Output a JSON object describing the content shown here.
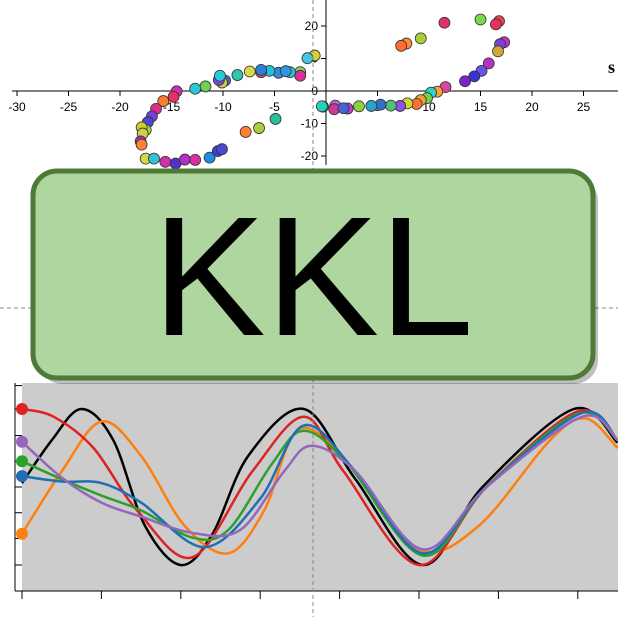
{
  "title": "KKL",
  "colors": {
    "banner_fill": "#aed69e",
    "banner_border": "#4d7a37",
    "panel_bg": "#cccccc",
    "crosshair": "#888888",
    "axis": "#000000"
  },
  "chart_data": [
    {
      "type": "scatter",
      "title": "",
      "cut_label": "s",
      "xlim": [
        -30,
        28
      ],
      "ylim": [
        -24,
        27
      ],
      "x_ticks": [
        -30,
        -25,
        -20,
        -15,
        -10,
        -5,
        0,
        5,
        10,
        15,
        20,
        25
      ],
      "x_tick_labels": [
        "-30",
        "-25",
        "-20",
        "-15",
        "-10",
        "-5",
        "0",
        "5",
        "10",
        "15",
        "20",
        "25"
      ],
      "y_ticks": [
        -20,
        -10,
        0,
        10,
        20
      ],
      "y_tick_labels": [
        "-20",
        "-10",
        "0",
        "10",
        "20"
      ],
      "points": [
        {
          "x": 15,
          "y": 22,
          "c": "#79d94b"
        },
        {
          "x": 11.5,
          "y": 21,
          "c": "#e0306a"
        },
        {
          "x": 16.8,
          "y": 21.5,
          "c": "#e74050"
        },
        {
          "x": 16.5,
          "y": 20.5,
          "c": "#e8325a"
        },
        {
          "x": 17.3,
          "y": 15,
          "c": "#c832c8"
        },
        {
          "x": 16.9,
          "y": 14.4,
          "c": "#7a40d8"
        },
        {
          "x": 16.7,
          "y": 12.2,
          "c": "#d4a830"
        },
        {
          "x": 9.2,
          "y": 16.2,
          "c": "#a9cf38"
        },
        {
          "x": 7.8,
          "y": 14.6,
          "c": "#ff8c32"
        },
        {
          "x": 7.3,
          "y": 13.9,
          "c": "#ff6b32"
        },
        {
          "x": 15.8,
          "y": 8.5,
          "c": "#b632c0"
        },
        {
          "x": 15.1,
          "y": 6.2,
          "c": "#6b52e0"
        },
        {
          "x": 14.4,
          "y": 4.5,
          "c": "#3c32d4"
        },
        {
          "x": 13.5,
          "y": 3,
          "c": "#7828c8"
        },
        {
          "x": 11.6,
          "y": 1.2,
          "c": "#d84898"
        },
        {
          "x": 10.8,
          "y": -0.2,
          "c": "#ffa032"
        },
        {
          "x": 10.2,
          "y": -0.5,
          "c": "#30d0c8"
        },
        {
          "x": 9.8,
          "y": -2.2,
          "c": "#70d048"
        },
        {
          "x": 9.2,
          "y": -2.8,
          "c": "#f0a030"
        },
        {
          "x": 8.8,
          "y": -4,
          "c": "#ff7030"
        },
        {
          "x": 7.9,
          "y": -3.8,
          "c": "#d0d830"
        },
        {
          "x": 7.2,
          "y": -4.6,
          "c": "#8a52e0"
        },
        {
          "x": 6.3,
          "y": -4.5,
          "c": "#50c078"
        },
        {
          "x": 5.3,
          "y": -4.2,
          "c": "#3070c8"
        },
        {
          "x": 4.4,
          "y": -4.6,
          "c": "#28a4c8"
        },
        {
          "x": 3.2,
          "y": -4.7,
          "c": "#90d040"
        },
        {
          "x": 2.1,
          "y": -5.4,
          "c": "#b842c8"
        },
        {
          "x": 0.9,
          "y": -4.5,
          "c": "#c060e0"
        },
        {
          "x": -0.3,
          "y": -4.8,
          "c": "#30d0a8"
        },
        {
          "x": -0.3,
          "y": -4.8,
          "c": "#22c8c0"
        },
        {
          "x": 0.8,
          "y": -5.6,
          "c": "#d03898"
        },
        {
          "x": 1.7,
          "y": -5.3,
          "c": "#4860d8"
        },
        {
          "x": -0.4,
          "y": -4.7,
          "c": "#26d0c0"
        },
        {
          "x": -1.1,
          "y": 10.9,
          "c": "#d8d030"
        },
        {
          "x": -1.8,
          "y": 10.1,
          "c": "#40c8e0"
        },
        {
          "x": -2.5,
          "y": 5.8,
          "c": "#78d850"
        },
        {
          "x": -2.5,
          "y": 4.7,
          "c": "#d83098"
        },
        {
          "x": -3.5,
          "y": 5.8,
          "c": "#28c8d8"
        },
        {
          "x": -4.6,
          "y": 5.6,
          "c": "#308ad8"
        },
        {
          "x": -5.5,
          "y": 6.2,
          "c": "#20c0d8"
        },
        {
          "x": -6.3,
          "y": 5.8,
          "c": "#e84050"
        },
        {
          "x": -6.3,
          "y": 6.5,
          "c": "#2880d8"
        },
        {
          "x": -7.4,
          "y": 6,
          "c": "#d8d848"
        },
        {
          "x": -8.6,
          "y": 4.9,
          "c": "#28c8a8"
        },
        {
          "x": -9.8,
          "y": 3.2,
          "c": "#3c6ad8"
        },
        {
          "x": -10.1,
          "y": 2.6,
          "c": "#d8d030"
        },
        {
          "x": -10.4,
          "y": 3.4,
          "c": "#7848d8"
        },
        {
          "x": -10.3,
          "y": 4.7,
          "c": "#28c8d8"
        },
        {
          "x": -11.7,
          "y": 1.4,
          "c": "#70d050"
        },
        {
          "x": -12.7,
          "y": 0.7,
          "c": "#28c8d8"
        },
        {
          "x": -14.5,
          "y": -0.1,
          "c": "#d030b0"
        },
        {
          "x": -14.8,
          "y": -1.8,
          "c": "#e83060"
        },
        {
          "x": -15.8,
          "y": -3.1,
          "c": "#ff7a30"
        },
        {
          "x": -16.5,
          "y": -5.5,
          "c": "#d83088"
        },
        {
          "x": -16.9,
          "y": -7.8,
          "c": "#7040d8"
        },
        {
          "x": -17.3,
          "y": -9.6,
          "c": "#4848d8"
        },
        {
          "x": -17.5,
          "y": -12,
          "c": "#a0d838"
        },
        {
          "x": -17.9,
          "y": -11.2,
          "c": "#c8d030"
        },
        {
          "x": -17.8,
          "y": -13.1,
          "c": "#d0d048"
        },
        {
          "x": -18,
          "y": -15.5,
          "c": "#a030c0"
        },
        {
          "x": -17.9,
          "y": -16.5,
          "c": "#ff8430"
        },
        {
          "x": -17.5,
          "y": -20.8,
          "c": "#d0d848"
        },
        {
          "x": -16.7,
          "y": -20.8,
          "c": "#38c0d8"
        },
        {
          "x": -15.6,
          "y": -21.8,
          "c": "#d030a8"
        },
        {
          "x": -14.6,
          "y": -22.3,
          "c": "#5830c8"
        },
        {
          "x": -13.7,
          "y": -21.1,
          "c": "#b030c8"
        },
        {
          "x": -12.7,
          "y": -21.2,
          "c": "#d830a0"
        },
        {
          "x": -11.3,
          "y": -20.5,
          "c": "#1890e0"
        },
        {
          "x": -10.5,
          "y": -18.5,
          "c": "#4040d0"
        },
        {
          "x": -10.1,
          "y": -17.9,
          "c": "#4848d0"
        },
        {
          "x": -7.8,
          "y": -12.6,
          "c": "#ff8030"
        },
        {
          "x": -6.5,
          "y": -11.4,
          "c": "#a8d038"
        },
        {
          "x": -4.9,
          "y": -8.6,
          "c": "#28c098"
        },
        {
          "x": -3.9,
          "y": 6.1,
          "c": "#2898e0"
        }
      ]
    },
    {
      "type": "line",
      "title": "",
      "xlabel": "",
      "ylabel": "",
      "xlim": [
        0,
        15
      ],
      "ylim": [
        -1.1,
        1.1
      ],
      "grid": false,
      "series": [
        {
          "color": "#000000",
          "values": [
            [
              0,
              0.05
            ],
            [
              0.75,
              0.6
            ],
            [
              1.5,
              1.0
            ],
            [
              2.3,
              0.6
            ],
            [
              3.1,
              -0.5
            ],
            [
              4.0,
              -1.0
            ],
            [
              4.8,
              -0.6
            ],
            [
              5.7,
              0.4
            ],
            [
              7.1,
              1.0
            ],
            [
              8.4,
              0.1
            ],
            [
              10.1,
              -1.0
            ],
            [
              11.6,
              0.0
            ],
            [
              13.9,
              1.0
            ],
            [
              15,
              0.57
            ]
          ]
        },
        {
          "color": "#ff7f0e",
          "values": [
            [
              0,
              -0.6
            ],
            [
              1,
              0.2
            ],
            [
              2.0,
              0.84
            ],
            [
              3.0,
              0.4
            ],
            [
              4.1,
              -0.5
            ],
            [
              5.2,
              -0.85
            ],
            [
              6.1,
              -0.3
            ],
            [
              7.0,
              0.75
            ],
            [
              8.4,
              0.2
            ],
            [
              10.0,
              -0.8
            ],
            [
              11.5,
              -0.5
            ],
            [
              13.3,
              0.6
            ],
            [
              14.2,
              0.88
            ],
            [
              15,
              0.5
            ]
          ]
        },
        {
          "color": "#dd2222",
          "values": [
            [
              0,
              1.0
            ],
            [
              0.8,
              0.9
            ],
            [
              1.8,
              0.5
            ],
            [
              2.9,
              -0.3
            ],
            [
              4.3,
              -0.9
            ],
            [
              5.8,
              0.2
            ],
            [
              7.1,
              0.9
            ],
            [
              8.1,
              0.2
            ],
            [
              10.0,
              -1.0
            ],
            [
              11.7,
              0.0
            ],
            [
              14.0,
              0.97
            ],
            [
              15,
              0.6
            ]
          ]
        },
        {
          "color": "#2ca02c",
          "values": [
            [
              0,
              0.33
            ],
            [
              1,
              0.1
            ],
            [
              2.0,
              -0.11
            ],
            [
              3.0,
              -0.3
            ],
            [
              4.3,
              -0.65
            ],
            [
              5.2,
              -0.55
            ],
            [
              6.3,
              0.3
            ],
            [
              7.1,
              0.72
            ],
            [
              8.2,
              0.3
            ],
            [
              10.1,
              -0.88
            ],
            [
              11.7,
              0.0
            ],
            [
              14.0,
              0.94
            ],
            [
              15,
              0.6
            ]
          ]
        },
        {
          "color": "#1f6fb4",
          "values": [
            [
              0,
              0.14
            ],
            [
              1,
              0.07
            ],
            [
              2,
              0.05
            ],
            [
              3,
              -0.2
            ],
            [
              4.6,
              -0.77
            ],
            [
              6.0,
              -0.15
            ],
            [
              7.1,
              0.79
            ],
            [
              8.4,
              0.2
            ],
            [
              10.1,
              -0.85
            ],
            [
              11.7,
              0.0
            ],
            [
              14.1,
              0.95
            ],
            [
              15,
              0.6
            ]
          ]
        },
        {
          "color": "#9467bd",
          "values": [
            [
              0,
              0.58
            ],
            [
              1,
              0.12
            ],
            [
              2,
              -0.2
            ],
            [
              3,
              -0.38
            ],
            [
              4.3,
              -0.59
            ],
            [
              5.5,
              -0.55
            ],
            [
              6.6,
              0.2
            ],
            [
              7.3,
              0.53
            ],
            [
              8.4,
              0.2
            ],
            [
              10.1,
              -0.8
            ],
            [
              11.7,
              0.0
            ],
            [
              14.1,
              0.9
            ],
            [
              15,
              0.6
            ]
          ]
        }
      ]
    }
  ]
}
